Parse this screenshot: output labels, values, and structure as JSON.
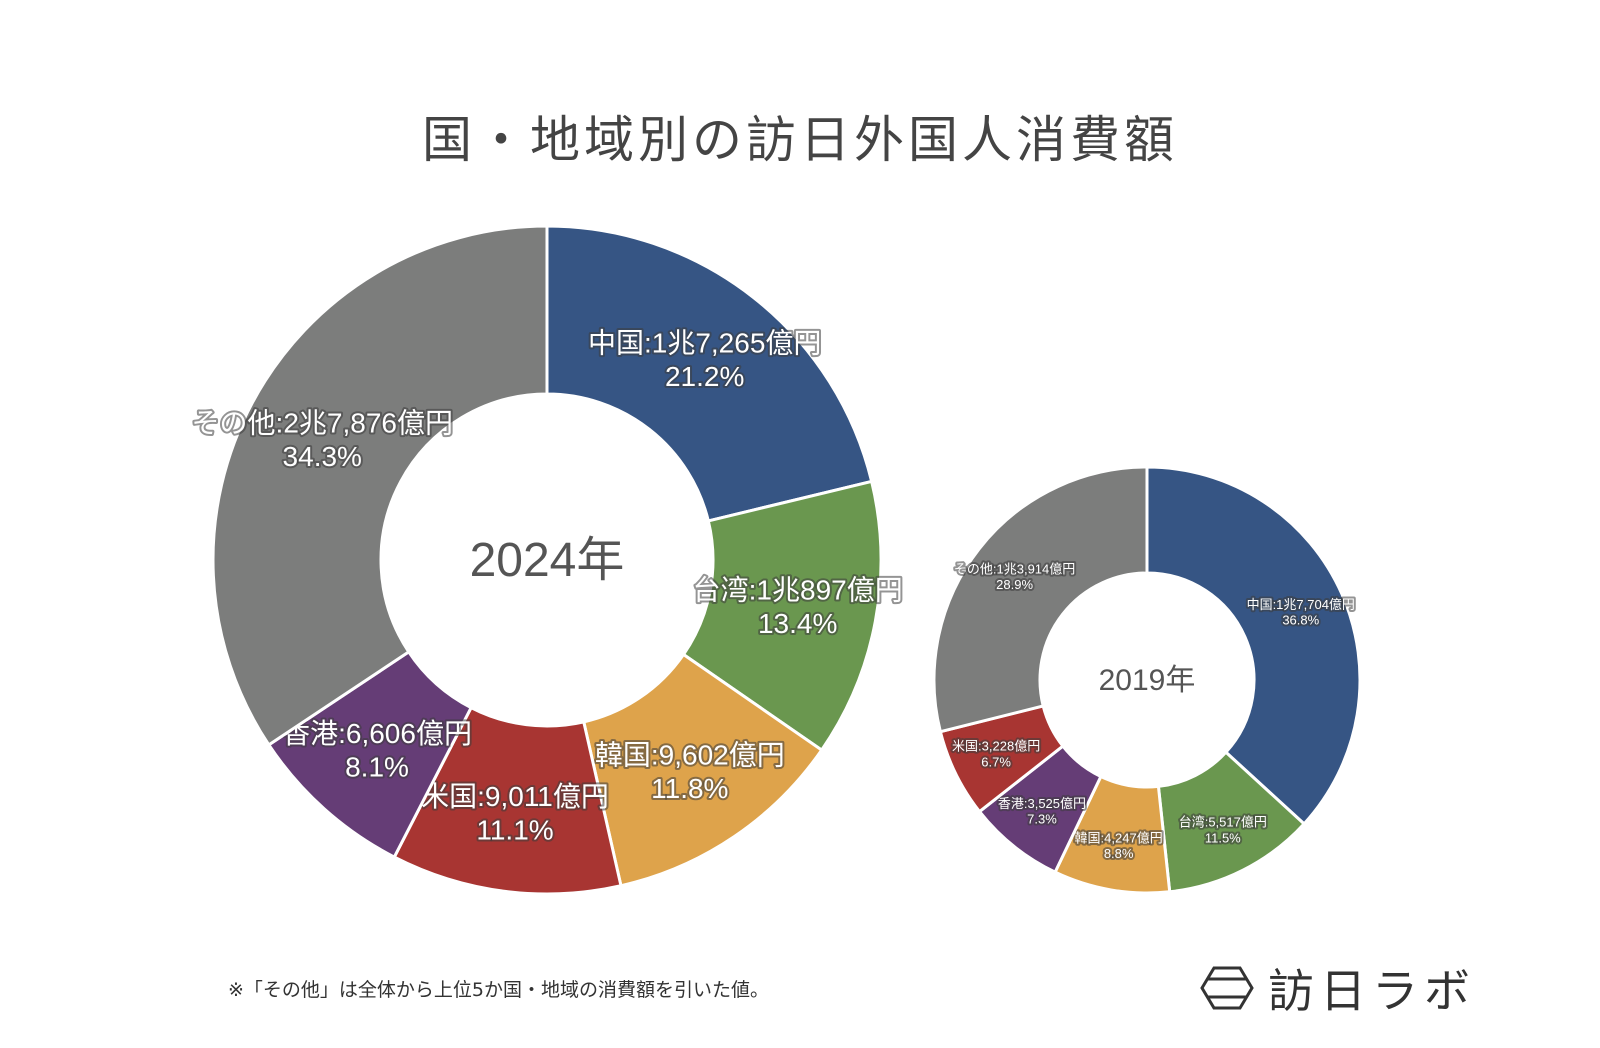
{
  "page": {
    "title": "国・地域別の訪日外国人消費額",
    "footnote": "※「その他」は全体から上位5か国・地域の消費額を引いた値。",
    "brand": {
      "name": "訪日ラボ",
      "icon": "hexagon-logo-icon"
    }
  },
  "colors": {
    "china": "#365584",
    "taiwan": "#6a974f",
    "korea": "#dea34b",
    "usa": "#a83532",
    "hongkong": "#653d76",
    "other": "#7c7d7c"
  },
  "chart_data": [
    {
      "type": "pie",
      "center_label": "2024年",
      "categories": [
        "中国",
        "台湾",
        "韓国",
        "米国",
        "香港",
        "その他"
      ],
      "values": [
        21.2,
        13.4,
        11.8,
        11.1,
        8.1,
        34.3
      ],
      "amount_labels": [
        "中国:1兆7,265億円",
        "台湾:1兆897億円",
        "韓国:9,602億円",
        "米国:9,011億円",
        "香港:6,606億円",
        "その他:2兆7,876億円"
      ],
      "percent_labels": [
        "21.2%",
        "13.4%",
        "11.8%",
        "11.1%",
        "8.1%",
        "34.3%"
      ],
      "color_keys": [
        "china",
        "taiwan",
        "korea",
        "usa",
        "hongkong",
        "other"
      ]
    },
    {
      "type": "pie",
      "center_label": "2019年",
      "categories": [
        "中国",
        "台湾",
        "韓国",
        "香港",
        "米国",
        "その他"
      ],
      "values": [
        36.8,
        11.5,
        8.8,
        7.3,
        6.7,
        28.9
      ],
      "amount_labels": [
        "中国:1兆7,704億円",
        "台湾:5,517億円",
        "韓国:4,247億円",
        "香港:3,525億円",
        "米国:3,228億円",
        "その他:1兆3,914億円"
      ],
      "percent_labels": [
        "36.8%",
        "11.5%",
        "8.8%",
        "7.3%",
        "6.7%",
        "28.9%"
      ],
      "color_keys": [
        "china",
        "taiwan",
        "korea",
        "hongkong",
        "usa",
        "other"
      ]
    }
  ]
}
